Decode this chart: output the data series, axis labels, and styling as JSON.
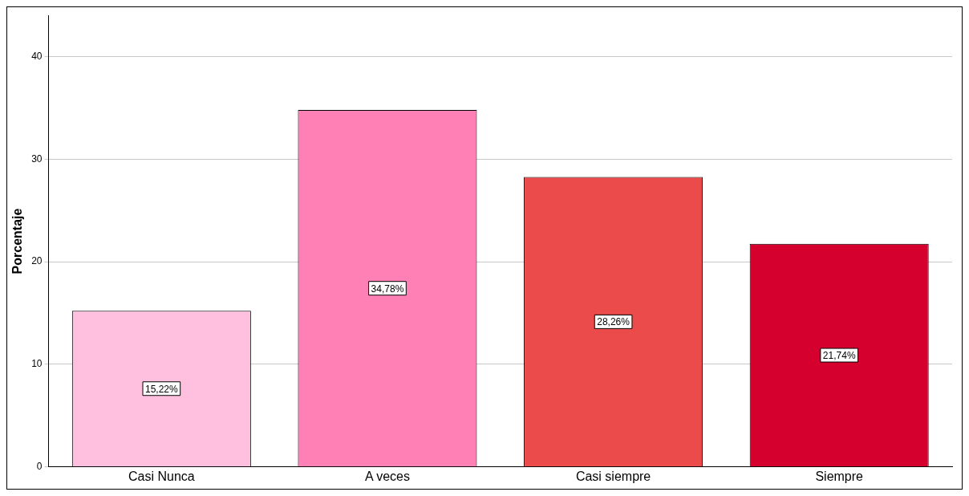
{
  "chart_data": {
    "type": "bar",
    "ylabel": "Porcentaje",
    "categories": [
      "Casi Nunca",
      "A veces",
      "Casi siempre",
      "Siempre"
    ],
    "values": [
      15.22,
      34.78,
      28.26,
      21.74
    ],
    "value_labels": [
      "15,22%",
      "34,78%",
      "28,26%",
      "21,74%"
    ],
    "colors": [
      "#ffc0e0",
      "#ff80b4",
      "#ec4b4b",
      "#d6002f"
    ],
    "ylim": [
      0,
      44
    ],
    "yticks": [
      0,
      10,
      20,
      30,
      40
    ],
    "grid": "y",
    "legend": false
  }
}
